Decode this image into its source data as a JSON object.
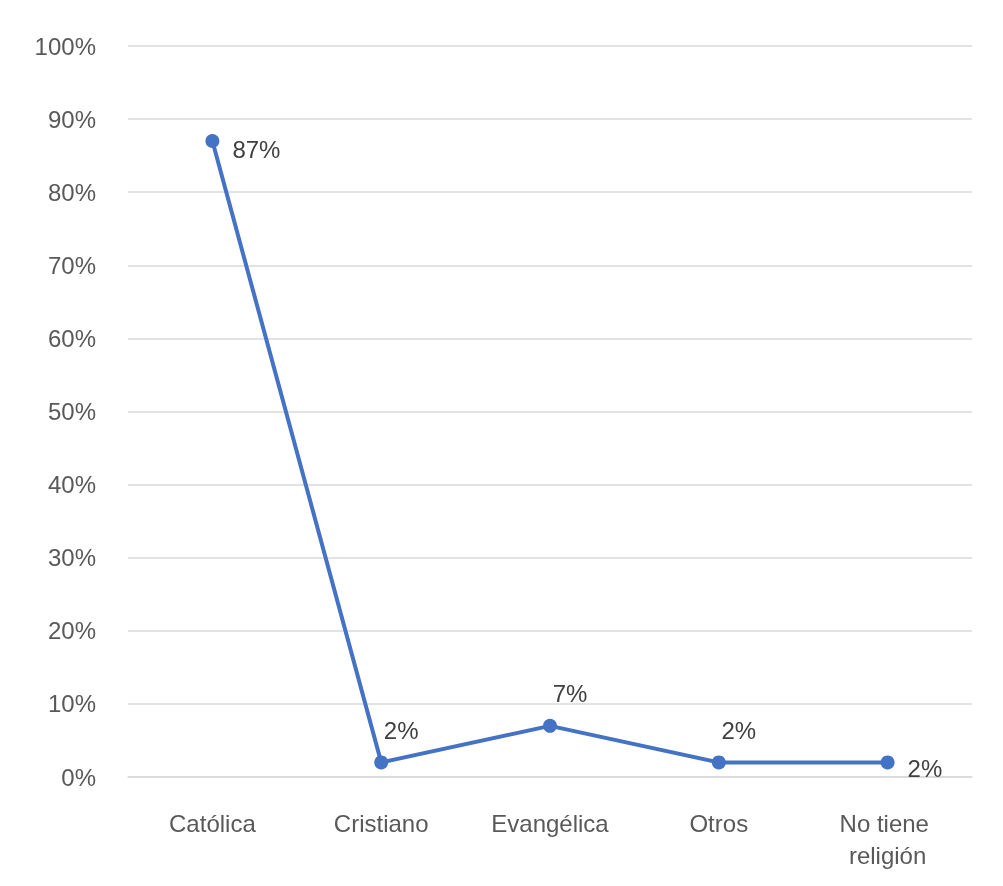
{
  "chart_data": {
    "type": "line",
    "categories": [
      "Católica",
      "Cristiano",
      "Evangélica",
      "Otros",
      "No tiene religión"
    ],
    "series": [
      {
        "color": "#4472c4",
        "values": [
          87,
          2,
          7,
          2,
          2
        ],
        "value_labels": [
          "87%",
          "2%",
          "7%",
          "2%",
          "2%"
        ]
      }
    ],
    "ylim": [
      0,
      100
    ],
    "yticks": [
      {
        "value": 0,
        "label": "0%"
      },
      {
        "value": 10,
        "label": "10%"
      },
      {
        "value": 20,
        "label": "20%"
      },
      {
        "value": 30,
        "label": "30%"
      },
      {
        "value": 40,
        "label": "40%"
      },
      {
        "value": 50,
        "label": "50%"
      },
      {
        "value": 60,
        "label": "60%"
      },
      {
        "value": 70,
        "label": "70%"
      },
      {
        "value": 80,
        "label": "80%"
      },
      {
        "value": 90,
        "label": "90%"
      },
      {
        "value": 100,
        "label": "100%"
      }
    ],
    "grid": "y",
    "marker": "circle",
    "line_style": "solid"
  }
}
